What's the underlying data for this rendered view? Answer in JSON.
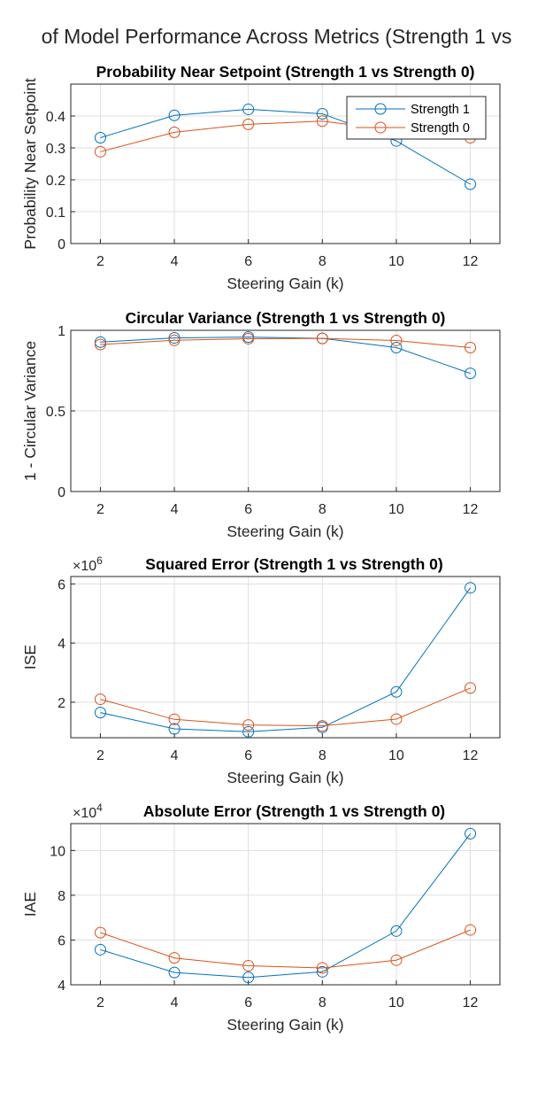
{
  "figure": {
    "suptitle": "of Model Performance Across Metrics (Strength 1 vs",
    "colors": {
      "strength1": "#0072BD",
      "strength0": "#D95319"
    }
  },
  "chart_data": [
    {
      "type": "line",
      "title": "Probability Near Setpoint (Strength 1 vs Strength 0)",
      "xlabel": "Steering Gain (k)",
      "ylabel": "Probability Near Setpoint",
      "x": [
        2,
        4,
        6,
        8,
        10,
        12
      ],
      "xlim": [
        1.2,
        12.8
      ],
      "ylim": [
        0,
        0.5
      ],
      "xticks": [
        2,
        4,
        6,
        8,
        10,
        12
      ],
      "yticks": [
        0,
        0.1,
        0.2,
        0.3,
        0.4
      ],
      "ytick_labels": [
        "0",
        "0.1",
        "0.2",
        "0.3",
        "0.4"
      ],
      "exponent": "",
      "grid": true,
      "legend": {
        "location": "top-right",
        "entries": [
          "Strength 1",
          "Strength 0"
        ]
      },
      "series": [
        {
          "name": "Strength 1",
          "values": [
            0.332,
            0.402,
            0.421,
            0.407,
            0.322,
            0.186
          ]
        },
        {
          "name": "Strength 0",
          "values": [
            0.288,
            0.349,
            0.374,
            0.384,
            0.355,
            0.332
          ]
        }
      ]
    },
    {
      "type": "line",
      "title": "Circular Variance (Strength 1 vs Strength 0)",
      "xlabel": "Steering Gain (k)",
      "ylabel": "1 - Circular Variance",
      "x": [
        2,
        4,
        6,
        8,
        10,
        12
      ],
      "xlim": [
        1.2,
        12.8
      ],
      "ylim": [
        0,
        1
      ],
      "xticks": [
        2,
        4,
        6,
        8,
        10,
        12
      ],
      "yticks": [
        0,
        0.5,
        1
      ],
      "ytick_labels": [
        "0",
        "0.5",
        "1"
      ],
      "exponent": "",
      "grid": true,
      "series": [
        {
          "values": [
            0.927,
            0.953,
            0.958,
            0.95,
            0.893,
            0.733
          ]
        },
        {
          "values": [
            0.912,
            0.938,
            0.948,
            0.95,
            0.937,
            0.893
          ]
        }
      ]
    },
    {
      "type": "line",
      "title": "Squared Error (Strength 1 vs Strength 0)",
      "xlabel": "Steering Gain (k)",
      "ylabel": "ISE",
      "x": [
        2,
        4,
        6,
        8,
        10,
        12
      ],
      "xlim": [
        1.2,
        12.8
      ],
      "ylim": [
        0.8,
        6.25
      ],
      "xticks": [
        2,
        4,
        6,
        8,
        10,
        12
      ],
      "yticks": [
        2,
        4,
        6
      ],
      "ytick_labels": [
        "2",
        "4",
        "6"
      ],
      "exponent": "6",
      "grid": true,
      "series": [
        {
          "values": [
            1.65,
            1.1,
            1.0,
            1.15,
            2.35,
            5.87
          ]
        },
        {
          "values": [
            2.1,
            1.42,
            1.23,
            1.2,
            1.43,
            2.48
          ]
        }
      ]
    },
    {
      "type": "line",
      "title": "Absolute Error (Strength 1 vs Strength 0)",
      "xlabel": "Steering Gain (k)",
      "ylabel": "IAE",
      "x": [
        2,
        4,
        6,
        8,
        10,
        12
      ],
      "xlim": [
        1.2,
        12.8
      ],
      "ylim": [
        4,
        11.2
      ],
      "xticks": [
        2,
        4,
        6,
        8,
        10,
        12
      ],
      "yticks": [
        4,
        6,
        8,
        10
      ],
      "ytick_labels": [
        "4",
        "6",
        "8",
        "10"
      ],
      "exponent": "4",
      "grid": true,
      "series": [
        {
          "values": [
            5.57,
            4.55,
            4.33,
            4.58,
            6.4,
            10.75
          ]
        },
        {
          "values": [
            6.33,
            5.2,
            4.85,
            4.75,
            5.1,
            6.45
          ]
        }
      ]
    }
  ]
}
